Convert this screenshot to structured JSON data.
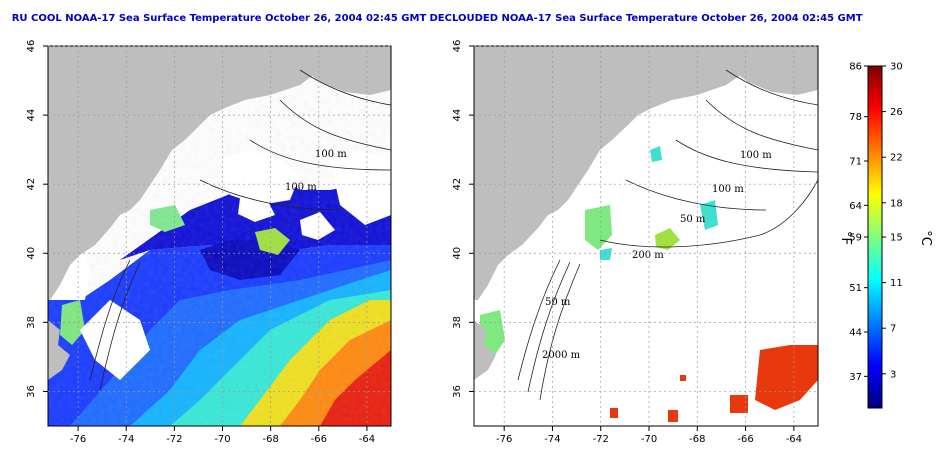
{
  "panels": [
    {
      "id": "left",
      "title": "RU COOL NOAA-17 Sea Surface Temperature October 26, 2004 02:45 GMT",
      "contour_labels": [
        "100 m",
        "100 m"
      ],
      "cloud_masked": false
    },
    {
      "id": "right",
      "title": "DECLOUDED NOAA-17 Sea Surface Temperature October 26, 2004 02:45 GMT",
      "contour_labels": [
        "100 m",
        "100 m",
        "50 m",
        "200 m",
        "50 m",
        "2000 m"
      ],
      "cloud_masked": true
    }
  ],
  "axes": {
    "lon_ticks": [
      "-76",
      "-74",
      "-72",
      "-70",
      "-68",
      "-66",
      "-64"
    ],
    "lat_ticks": [
      "46",
      "44",
      "42",
      "40",
      "38",
      "36"
    ],
    "lon_range": [
      -77.25,
      -63.0
    ],
    "lat_range": [
      35.0,
      46.0
    ],
    "grid": "dotted"
  },
  "colorbar": {
    "f_ticks": [
      "86",
      "78",
      "71",
      "64",
      "59",
      "51",
      "44",
      "37"
    ],
    "c_ticks": [
      "30",
      "26",
      "22",
      "18",
      "15",
      "11",
      "7",
      "3"
    ],
    "f_unit": "°F",
    "c_unit": "°C",
    "range_c": [
      0,
      30
    ],
    "colors": [
      "#00007f",
      "#0000ff",
      "#007fff",
      "#00ffff",
      "#7fff7f",
      "#ffff00",
      "#ff7f00",
      "#ff0000",
      "#7f0000"
    ]
  },
  "colors": {
    "land": "#bebebe",
    "cloud": "#ffffff",
    "title": "#0000cc"
  }
}
